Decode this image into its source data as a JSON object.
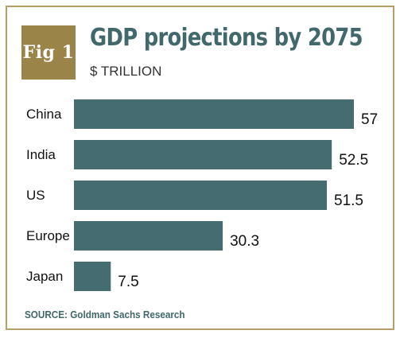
{
  "figure_label": "Fig 1",
  "source": "SOURCE: Goldman Sachs Research",
  "colors": {
    "bar": "#456c70",
    "badge": "#9a8447",
    "border": "#b5a06a",
    "title": "#41686a"
  },
  "chart_data": {
    "type": "bar",
    "orientation": "horizontal",
    "title": "GDP projections by 2075",
    "subtitle": "$ TRILLION",
    "categories": [
      "China",
      "India",
      "US",
      "Europe",
      "Japan"
    ],
    "values": [
      57,
      52.5,
      51.5,
      30.3,
      7.5
    ],
    "value_labels": [
      "57",
      "52.5",
      "51.5",
      "30.3",
      "7.5"
    ],
    "xlim": [
      0,
      57
    ],
    "grid": false,
    "legend": "none"
  }
}
